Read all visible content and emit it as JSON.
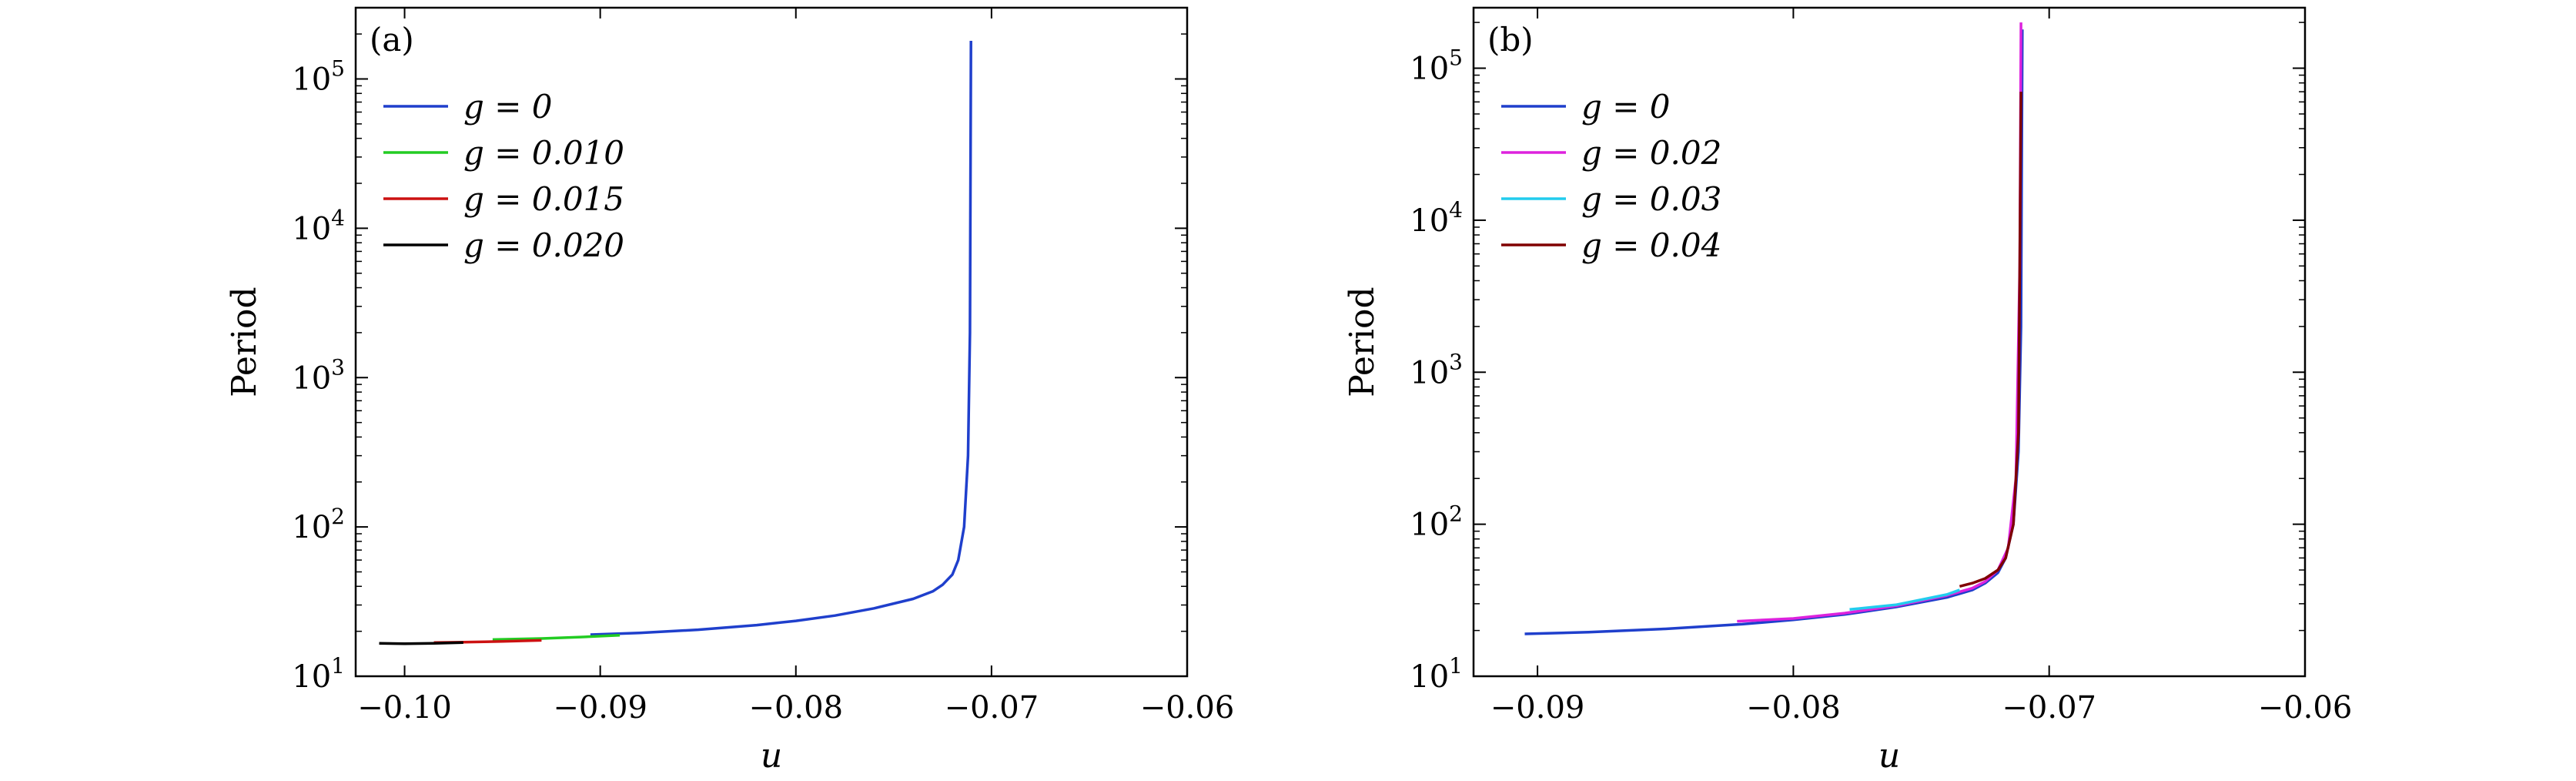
{
  "chart_data": [
    {
      "type": "line",
      "panel_label": "(a)",
      "xlabel": "u",
      "ylabel": "Period",
      "xlim": [
        -0.1025,
        -0.06
      ],
      "ylim": [
        10,
        300000
      ],
      "yscale": "log",
      "xticks": [
        -0.1,
        -0.09,
        -0.08,
        -0.07,
        -0.06
      ],
      "xtick_labels": [
        "−0.10",
        "−0.09",
        "−0.08",
        "−0.07",
        "−0.06"
      ],
      "yticks": [
        10,
        100,
        1000,
        10000,
        100000
      ],
      "ytick_labels": [
        {
          "base": "10",
          "exp": "1"
        },
        {
          "base": "10",
          "exp": "2"
        },
        {
          "base": "10",
          "exp": "3"
        },
        {
          "base": "10",
          "exp": "4"
        },
        {
          "base": "10",
          "exp": "5"
        }
      ],
      "legend_position": "top-left",
      "series": [
        {
          "name": "g = 0",
          "color": "#1f3fcc",
          "x": [
            -0.0905,
            -0.088,
            -0.085,
            -0.082,
            -0.08,
            -0.078,
            -0.076,
            -0.074,
            -0.073,
            -0.0725,
            -0.072,
            -0.0717,
            -0.0714,
            -0.0712,
            -0.0711,
            -0.07105
          ],
          "y": [
            19,
            19.5,
            20.5,
            22,
            23.5,
            25.5,
            28.5,
            33,
            37,
            41,
            48,
            60,
            100,
            300,
            2000,
            180000
          ]
        },
        {
          "name": "g = 0.010",
          "color": "#22cc22",
          "x": [
            -0.0955,
            -0.093,
            -0.091,
            -0.089
          ],
          "y": [
            17.6,
            17.9,
            18.3,
            18.8
          ]
        },
        {
          "name": "g = 0.015",
          "color": "#cc1111",
          "x": [
            -0.0985,
            -0.097,
            -0.095,
            -0.093
          ],
          "y": [
            16.8,
            16.9,
            17.1,
            17.4
          ]
        },
        {
          "name": "g = 0.020",
          "color": "#000000",
          "x": [
            -0.1013,
            -0.1,
            -0.0985,
            -0.097
          ],
          "y": [
            16.6,
            16.5,
            16.6,
            16.8
          ]
        }
      ]
    },
    {
      "type": "line",
      "panel_label": "(b)",
      "xlabel": "u",
      "ylabel": "Period",
      "xlim": [
        -0.0925,
        -0.06
      ],
      "ylim": [
        10,
        250000
      ],
      "yscale": "log",
      "xticks": [
        -0.09,
        -0.08,
        -0.07,
        -0.06
      ],
      "xtick_labels": [
        "−0.09",
        "−0.08",
        "−0.07",
        "−0.06"
      ],
      "yticks": [
        10,
        100,
        1000,
        10000,
        100000
      ],
      "ytick_labels": [
        {
          "base": "10",
          "exp": "1"
        },
        {
          "base": "10",
          "exp": "2"
        },
        {
          "base": "10",
          "exp": "3"
        },
        {
          "base": "10",
          "exp": "4"
        },
        {
          "base": "10",
          "exp": "5"
        }
      ],
      "legend_position": "top-left",
      "series": [
        {
          "name": "g = 0",
          "color": "#1f3fcc",
          "x": [
            -0.0905,
            -0.088,
            -0.085,
            -0.082,
            -0.08,
            -0.078,
            -0.076,
            -0.074,
            -0.073,
            -0.0725,
            -0.072,
            -0.0717,
            -0.0714,
            -0.0712,
            -0.0711,
            -0.07105
          ],
          "y": [
            19,
            19.5,
            20.5,
            22,
            23.5,
            25.5,
            28.5,
            33,
            37,
            41,
            48,
            60,
            100,
            300,
            2000,
            180000
          ]
        },
        {
          "name": "g = 0.02",
          "color": "#dd22dd",
          "x": [
            -0.0822,
            -0.08,
            -0.078,
            -0.076,
            -0.074,
            -0.073,
            -0.0725,
            -0.072,
            -0.0716,
            -0.0713,
            -0.07115,
            -0.0711
          ],
          "y": [
            23,
            24,
            26,
            29,
            34,
            38,
            42,
            50,
            70,
            200,
            5000,
            200000
          ]
        },
        {
          "name": "g = 0.03",
          "color": "#22ccee",
          "x": [
            -0.0778,
            -0.076,
            -0.074,
            -0.0735
          ],
          "y": [
            27.5,
            29.5,
            34.5,
            37
          ]
        },
        {
          "name": "g = 0.04",
          "color": "#800000",
          "x": [
            -0.0735,
            -0.073,
            -0.0725,
            -0.072,
            -0.0717,
            -0.0714,
            -0.0712,
            -0.07115,
            -0.0711
          ],
          "y": [
            39,
            41,
            44,
            50,
            60,
            100,
            400,
            5000,
            70000
          ]
        }
      ]
    }
  ]
}
